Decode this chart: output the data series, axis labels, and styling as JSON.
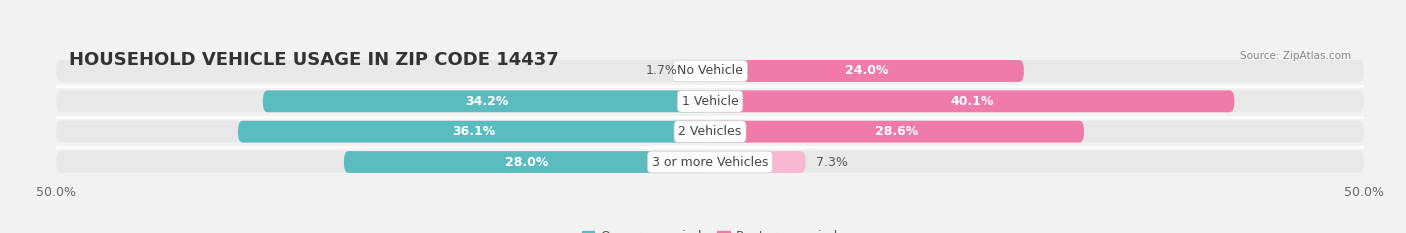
{
  "title": "HOUSEHOLD VEHICLE USAGE IN ZIP CODE 14437",
  "source": "Source: ZipAtlas.com",
  "categories": [
    "No Vehicle",
    "1 Vehicle",
    "2 Vehicles",
    "3 or more Vehicles"
  ],
  "owner_values": [
    1.7,
    34.2,
    36.1,
    28.0
  ],
  "renter_values": [
    24.0,
    40.1,
    28.6,
    7.3
  ],
  "owner_color": "#5bbcbf",
  "renter_color": "#f07aaa",
  "renter_color_light": "#f9b8d2",
  "background_color": "#f2f2f2",
  "row_color": "#e8e8e8",
  "axis_min": -50.0,
  "axis_max": 50.0,
  "title_fontsize": 13,
  "label_fontsize": 9,
  "value_fontsize": 9,
  "tick_fontsize": 9,
  "bar_height": 0.72,
  "figsize": [
    14.06,
    2.33
  ],
  "dpi": 100
}
